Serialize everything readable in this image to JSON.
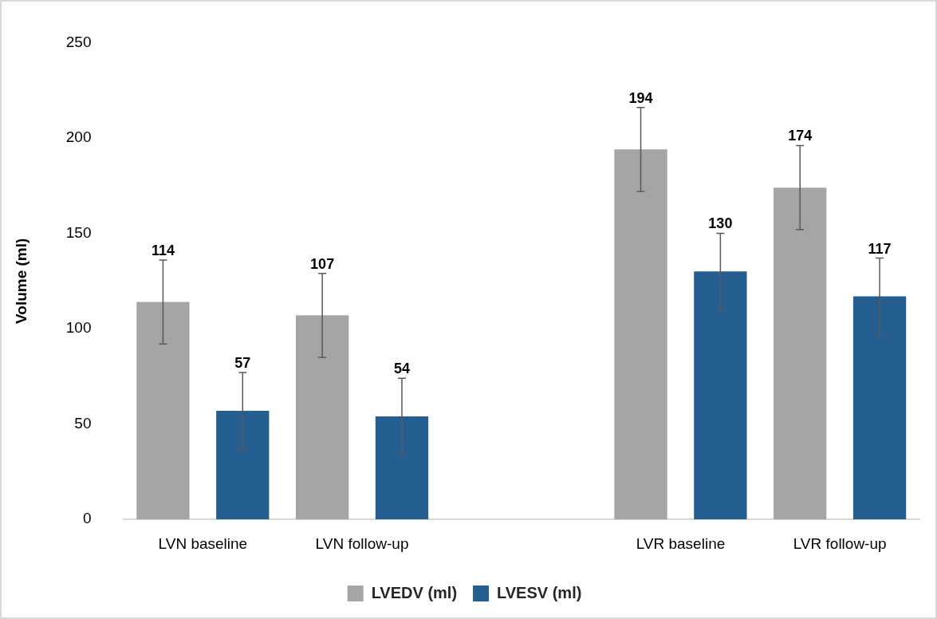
{
  "chart_data": {
    "type": "bar",
    "ylabel": "Volume (ml)",
    "categories": [
      "LVN baseline",
      "LVN follow-up",
      null,
      "LVR baseline",
      "LVR follow-up"
    ],
    "series": [
      {
        "name": "LVEDV (ml)",
        "color": "#a5a5a5",
        "values": [
          114,
          107,
          null,
          194,
          174
        ],
        "errors": [
          22,
          22,
          null,
          22,
          22
        ]
      },
      {
        "name": "LVESV (ml)",
        "color": "#255e91",
        "values": [
          57,
          54,
          null,
          130,
          117
        ],
        "errors": [
          20,
          20,
          null,
          20,
          20
        ]
      }
    ],
    "ylim": [
      0,
      250
    ],
    "yticks": [
      0,
      50,
      100,
      150,
      200,
      250
    ],
    "grid": false,
    "legend": "bottom",
    "data_labels": true
  }
}
